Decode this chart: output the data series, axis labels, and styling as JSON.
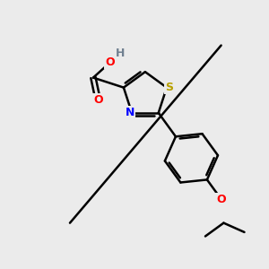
{
  "bg_color": "#ebebeb",
  "bond_color": "#000000",
  "atom_colors": {
    "O": "#ff0000",
    "N": "#0000ff",
    "S": "#b8a000",
    "H": "#708090",
    "C": "#000000"
  },
  "bond_width": 1.8,
  "figsize": [
    3.0,
    3.0
  ],
  "dpi": 100
}
